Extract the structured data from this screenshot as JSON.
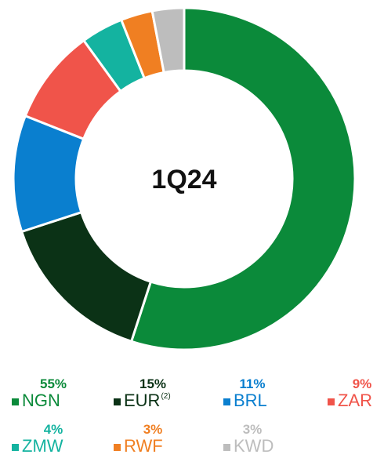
{
  "chart_data": {
    "type": "donut",
    "center_label": "1Q24",
    "categories": [
      "NGN",
      "EUR",
      "BRL",
      "ZAR",
      "ZMW",
      "RWF",
      "KWD"
    ],
    "values": [
      55,
      15,
      11,
      9,
      4,
      3,
      3
    ],
    "value_labels": [
      "55%",
      "15%",
      "11%",
      "9%",
      "4%",
      "3%",
      "3%"
    ],
    "legend_notes": [
      null,
      "(2)",
      null,
      null,
      null,
      null,
      null
    ],
    "colors": [
      "#0b8a3a",
      "#0b3216",
      "#0a7fcf",
      "#f0544a",
      "#14b3a0",
      "#f07f22",
      "#bdbdbd"
    ]
  }
}
